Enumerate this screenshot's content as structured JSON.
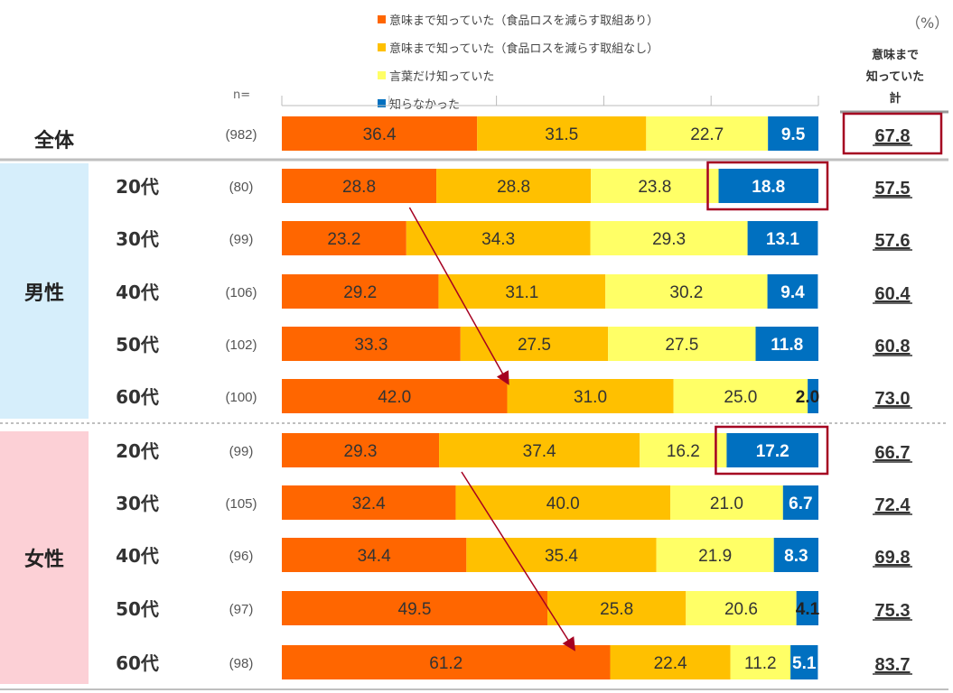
{
  "legend": {
    "items": [
      {
        "label": "意味まで知っていた（食品ロスを減らす取組あり）",
        "color": "#FF6600"
      },
      {
        "label": "意味まで知っていた（食品ロスを減らす取組なし）",
        "color": "#FFC000"
      },
      {
        "label": "言葉だけ知っていた",
        "color": "#FFFF66"
      },
      {
        "label": "知らなかった",
        "color": "#0070C0"
      }
    ]
  },
  "unit_label": "（%）",
  "total_header": [
    "意味まで",
    "知っていた",
    "計"
  ],
  "n_header": "n=",
  "groups": {
    "whole": "全体",
    "male": "男性",
    "female": "女性"
  },
  "chart_data": {
    "type": "bar",
    "orientation": "horizontal-stacked-100",
    "series_names": [
      "意味まで知っていた（食品ロスを減らす取組あり）",
      "意味まで知っていた（食品ロスを減らす取組なし）",
      "言葉だけ知っていた",
      "知らなかった"
    ],
    "series_colors": [
      "#FF6600",
      "#FFC000",
      "#FFFF66",
      "#0070C0"
    ],
    "rows": [
      {
        "group": "全体",
        "label": "全体",
        "n": "(982)",
        "values": [
          36.4,
          31.5,
          22.7,
          9.5
        ],
        "values_text": [
          "36.4",
          "31.5",
          "22.7",
          "9.5"
        ],
        "total": "67.8"
      },
      {
        "group": "男性",
        "label": "20代",
        "n": "(80)",
        "values": [
          28.8,
          28.8,
          23.8,
          18.8
        ],
        "values_text": [
          "28.8",
          "28.8",
          "23.8",
          "18.8"
        ],
        "total": "57.5"
      },
      {
        "group": "男性",
        "label": "30代",
        "n": "(99)",
        "values": [
          23.2,
          34.3,
          29.3,
          13.1
        ],
        "values_text": [
          "23.2",
          "34.3",
          "29.3",
          "13.1"
        ],
        "total": "57.6"
      },
      {
        "group": "男性",
        "label": "40代",
        "n": "(106)",
        "values": [
          29.2,
          31.1,
          30.2,
          9.4
        ],
        "values_text": [
          "29.2",
          "31.1",
          "30.2",
          "9.4"
        ],
        "total": "60.4"
      },
      {
        "group": "男性",
        "label": "50代",
        "n": "(102)",
        "values": [
          33.3,
          27.5,
          27.5,
          11.8
        ],
        "values_text": [
          "33.3",
          "27.5",
          "27.5",
          "11.8"
        ],
        "total": "60.8"
      },
      {
        "group": "男性",
        "label": "60代",
        "n": "(100)",
        "values": [
          42.0,
          31.0,
          25.0,
          2.0
        ],
        "values_text": [
          "42.0",
          "31.0",
          "25.0",
          "2.0"
        ],
        "total": "73.0"
      },
      {
        "group": "女性",
        "label": "20代",
        "n": "(99)",
        "values": [
          29.3,
          37.4,
          16.2,
          17.2
        ],
        "values_text": [
          "29.3",
          "37.4",
          "16.2",
          "17.2"
        ],
        "total": "66.7"
      },
      {
        "group": "女性",
        "label": "30代",
        "n": "(105)",
        "values": [
          32.4,
          40.0,
          21.0,
          6.7
        ],
        "values_text": [
          "32.4",
          "40.0",
          "21.0",
          "6.7"
        ],
        "total": "72.4"
      },
      {
        "group": "女性",
        "label": "40代",
        "n": "(96)",
        "values": [
          34.4,
          35.4,
          21.9,
          8.3
        ],
        "values_text": [
          "34.4",
          "35.4",
          "21.9",
          "8.3"
        ],
        "total": "69.8"
      },
      {
        "group": "女性",
        "label": "50代",
        "n": "(97)",
        "values": [
          49.5,
          25.8,
          20.6,
          4.1
        ],
        "values_text": [
          "49.5",
          "25.8",
          "20.6",
          "4.1"
        ],
        "total": "75.3"
      },
      {
        "group": "女性",
        "label": "60代",
        "n": "(98)",
        "values": [
          61.2,
          22.4,
          11.2,
          5.1
        ],
        "values_text": [
          "61.2",
          "22.4",
          "11.2",
          "5.1"
        ],
        "total": "83.7"
      }
    ],
    "highlights": [
      {
        "row": 0,
        "target": "total"
      },
      {
        "row": 1,
        "target": "segment",
        "series": 3
      },
      {
        "row": 6,
        "target": "segment",
        "series": 3
      }
    ],
    "trend_arrows": [
      {
        "from_row": 1,
        "to_row": 5,
        "from_value": 23.8,
        "to_value": 42.0
      },
      {
        "from_row": 6,
        "to_row": 10,
        "from_value": 33.5,
        "to_value": 54.3
      }
    ],
    "xlim": [
      0,
      100
    ]
  }
}
